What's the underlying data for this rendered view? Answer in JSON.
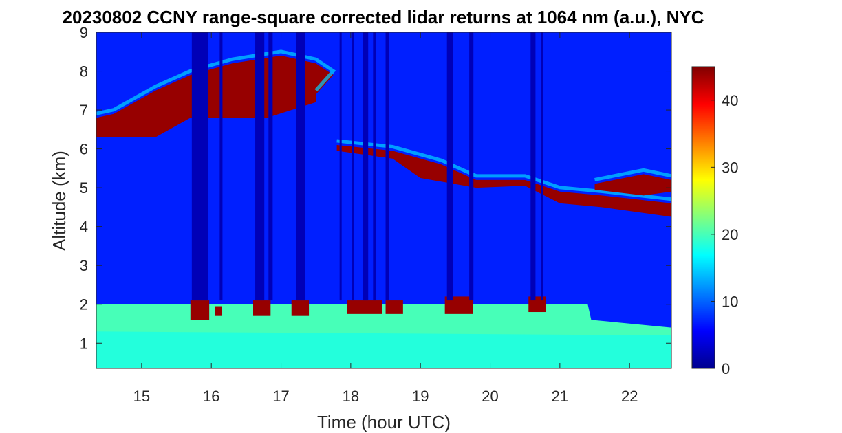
{
  "chart_data": {
    "type": "heatmap",
    "title": "20230802 CCNY range-square corrected lidar returns at 1064 nm (a.u.), NYC",
    "xlabel": "Time (hour UTC)",
    "ylabel": "Altitude (km)",
    "xlim": [
      14.35,
      22.6
    ],
    "ylim": [
      0.35,
      9.0
    ],
    "x_ticks": [
      15,
      16,
      17,
      18,
      19,
      20,
      21,
      22
    ],
    "y_ticks": [
      1,
      2,
      3,
      4,
      5,
      6,
      7,
      8,
      9
    ],
    "colorbar": {
      "colormap": "jet",
      "clim": [
        0,
        45
      ],
      "ticks": [
        0,
        10,
        20,
        30,
        40
      ]
    },
    "background_level": 7,
    "boundary_layer": {
      "x_range": [
        14.35,
        22.55
      ],
      "top_km": [
        [
          14.35,
          2.0
        ],
        [
          21.4,
          2.0
        ],
        [
          21.45,
          1.6
        ],
        [
          22.6,
          1.4
        ]
      ],
      "level": 20
    },
    "layers": [
      {
        "name_hint": "upper cloud",
        "level": 44,
        "top": [
          [
            14.35,
            6.8
          ],
          [
            14.6,
            6.9
          ],
          [
            15.2,
            7.5
          ],
          [
            15.7,
            7.9
          ],
          [
            16.3,
            8.2
          ],
          [
            17.0,
            8.4
          ],
          [
            17.5,
            8.2
          ],
          [
            17.75,
            7.9
          ],
          [
            17.5,
            7.4
          ]
        ],
        "bottom": [
          [
            14.35,
            6.3
          ],
          [
            15.2,
            6.3
          ],
          [
            15.7,
            6.8
          ],
          [
            16.8,
            6.8
          ],
          [
            17.5,
            7.2
          ]
        ]
      },
      {
        "name_hint": "descending thin layer",
        "level": 44,
        "top": [
          [
            17.8,
            6.1
          ],
          [
            18.6,
            5.95
          ],
          [
            19.3,
            5.6
          ],
          [
            19.8,
            5.2
          ],
          [
            20.5,
            5.2
          ],
          [
            21.0,
            4.9
          ],
          [
            21.6,
            4.8
          ],
          [
            22.6,
            4.6
          ]
        ],
        "bottom": [
          [
            17.8,
            5.95
          ],
          [
            18.6,
            5.75
          ],
          [
            19.0,
            5.25
          ],
          [
            19.8,
            5.0
          ],
          [
            20.5,
            5.05
          ],
          [
            21.0,
            4.6
          ],
          [
            21.6,
            4.5
          ],
          [
            22.6,
            4.25
          ]
        ]
      },
      {
        "name_hint": "late upper patch",
        "level": 44,
        "top": [
          [
            21.5,
            5.1
          ],
          [
            22.2,
            5.35
          ],
          [
            22.6,
            5.2
          ]
        ],
        "bottom": [
          [
            21.5,
            4.95
          ],
          [
            22.2,
            4.8
          ],
          [
            22.6,
            4.9
          ]
        ]
      }
    ],
    "bl_top_patches": [
      {
        "x": [
          15.7,
          15.97
        ],
        "y": [
          1.6,
          2.1
        ]
      },
      {
        "x": [
          16.05,
          16.15
        ],
        "y": [
          1.7,
          1.95
        ]
      },
      {
        "x": [
          16.6,
          16.85
        ],
        "y": [
          1.7,
          2.1
        ]
      },
      {
        "x": [
          17.15,
          17.4
        ],
        "y": [
          1.7,
          2.1
        ]
      },
      {
        "x": [
          17.95,
          18.45
        ],
        "y": [
          1.75,
          2.1
        ]
      },
      {
        "x": [
          18.5,
          18.75
        ],
        "y": [
          1.75,
          2.1
        ]
      },
      {
        "x": [
          19.35,
          19.75
        ],
        "y": [
          1.75,
          2.2
        ]
      },
      {
        "x": [
          20.55,
          20.8
        ],
        "y": [
          1.8,
          2.2
        ]
      }
    ],
    "dropout_columns": [
      [
        15.72,
        15.95
      ],
      [
        16.12,
        16.16
      ],
      [
        16.63,
        16.76
      ],
      [
        16.82,
        16.88
      ],
      [
        17.22,
        17.35
      ],
      [
        17.84,
        17.87
      ],
      [
        18.02,
        18.05
      ],
      [
        18.17,
        18.25
      ],
      [
        18.32,
        18.36
      ],
      [
        18.5,
        18.55
      ],
      [
        19.38,
        19.47
      ],
      [
        19.7,
        19.76
      ],
      [
        20.58,
        20.65
      ],
      [
        20.73,
        20.76
      ]
    ]
  }
}
